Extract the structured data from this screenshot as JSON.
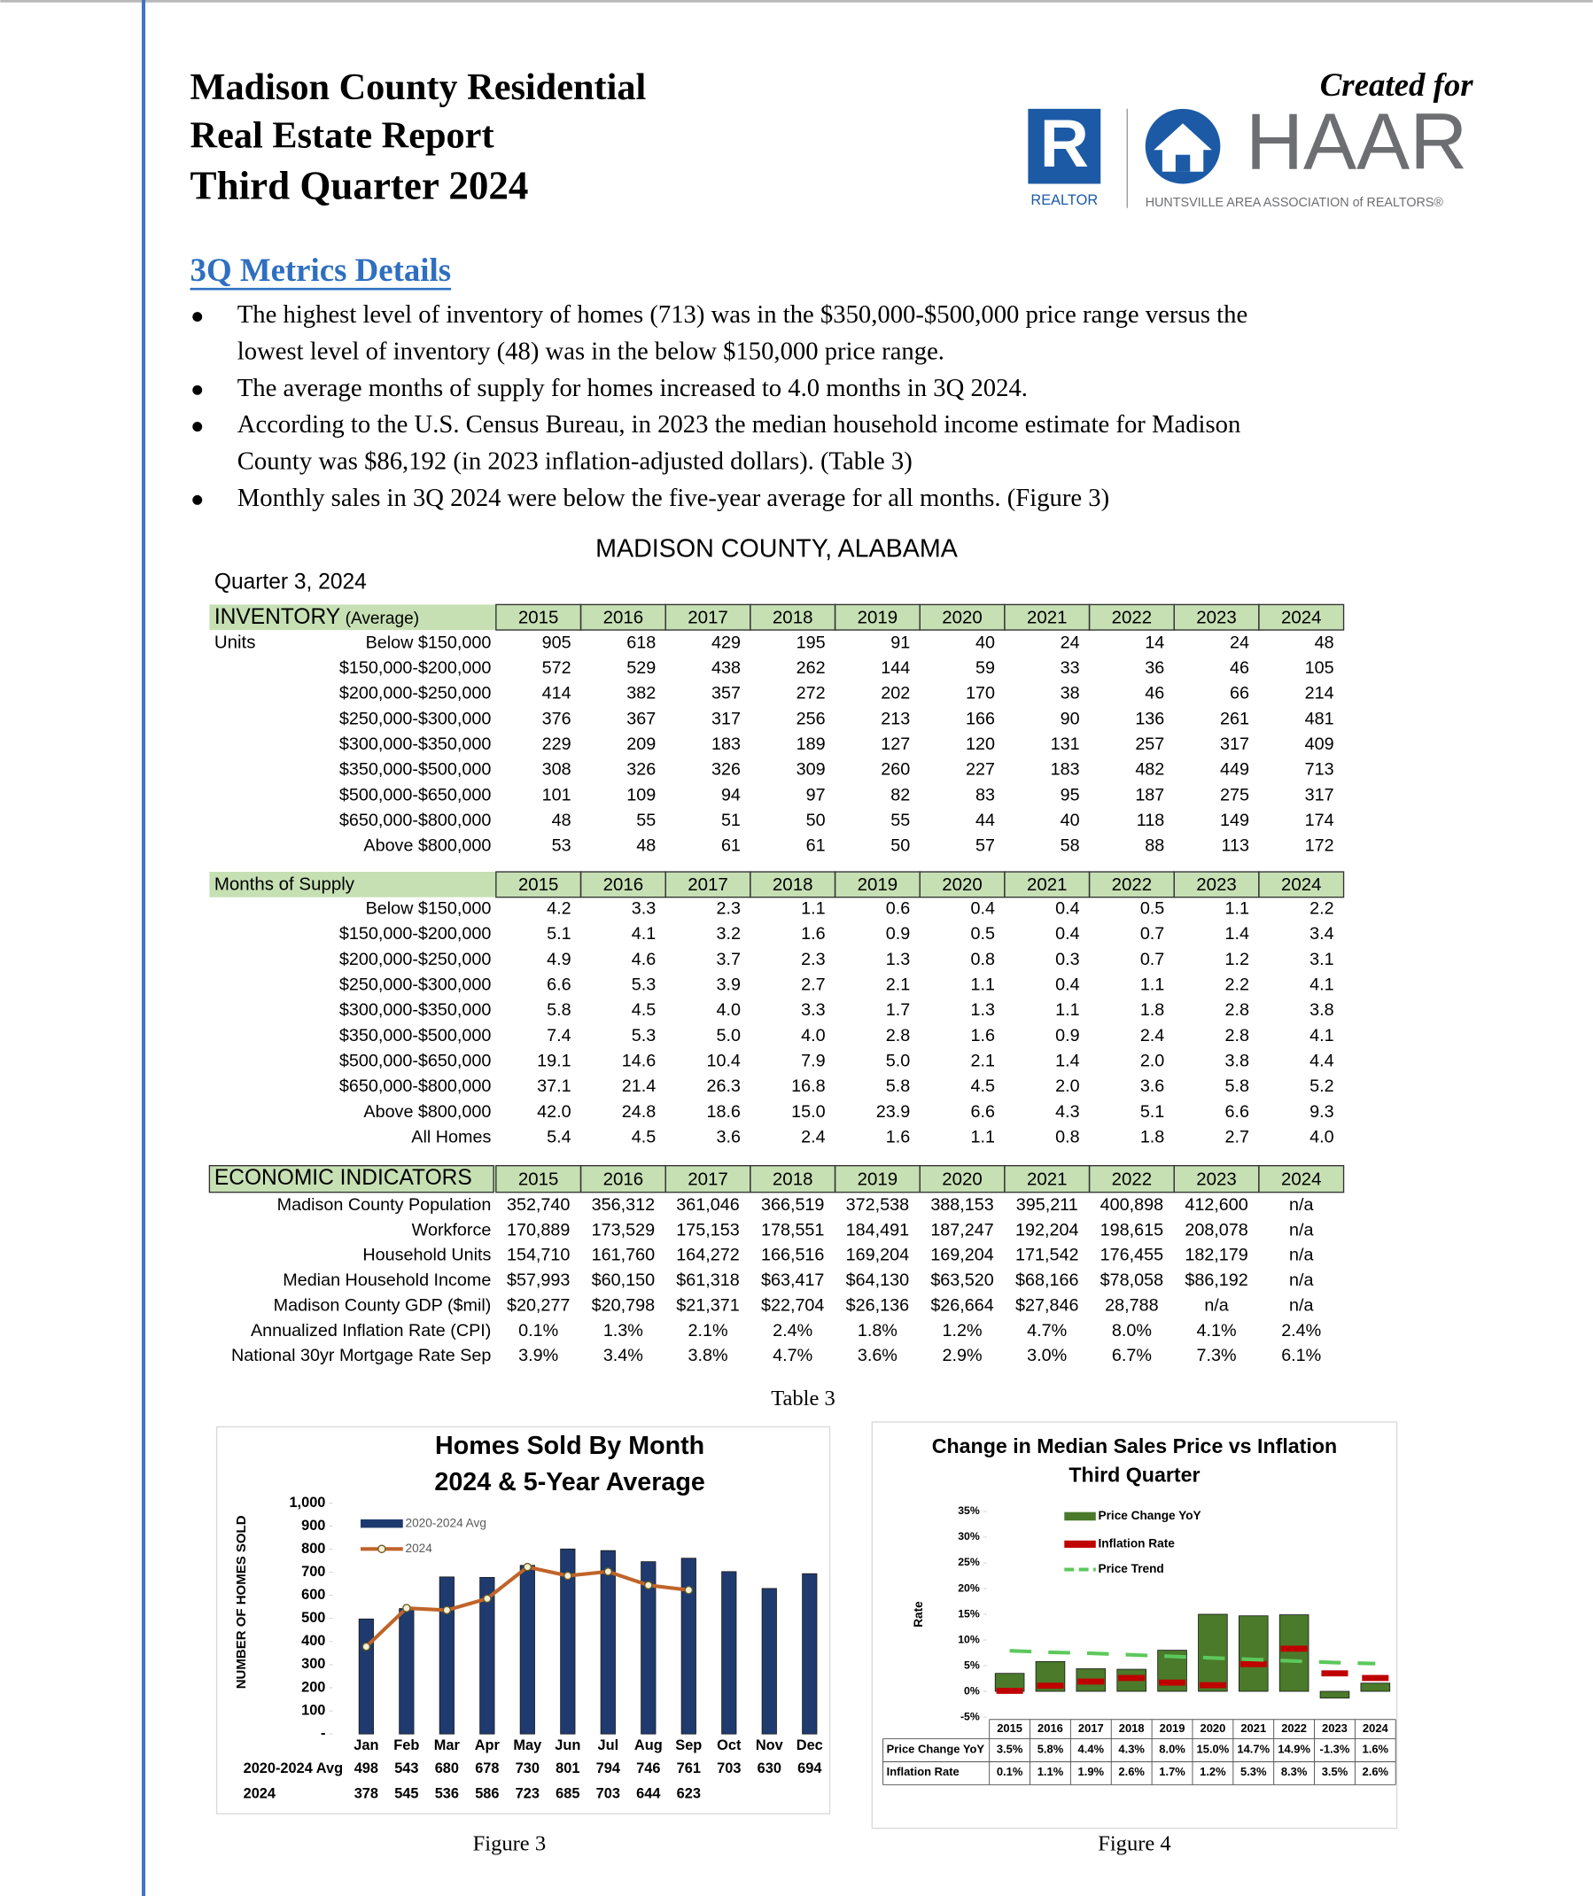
{
  "header": {
    "title": [
      "Madison County Residential",
      "Real Estate Report",
      "Third Quarter 2024"
    ],
    "created_for": "Created for",
    "logo": {
      "r_mark": "R",
      "realtor": "REALTOR",
      "name": "HAAR",
      "subtitle": "HUNTSVILLE AREA ASSOCIATION of REALTORS®"
    }
  },
  "metrics": {
    "heading": "3Q Metrics Details",
    "bullets": [
      [
        "The highest level of inventory of homes (713) was in the $350,000-$500,000 price range versus the",
        "lowest level of inventory (48) was in the below $150,000 price range."
      ],
      [
        "The average months of supply for homes increased to 4.0 months in 3Q 2024."
      ],
      [
        "According to the U.S. Census Bureau, in 2023 the median household income estimate for Madison",
        "County was $86,192 (in 2023 inflation-adjusted dollars). (Table 3)"
      ],
      [
        "Monthly sales in 3Q 2024 were below the five-year average for all months. (Figure 3)"
      ]
    ]
  },
  "table": {
    "title": "MADISON COUNTY, ALABAMA",
    "period": "Quarter 3, 2024",
    "years": [
      2015,
      2016,
      2017,
      2018,
      2019,
      2020,
      2021,
      2022,
      2023,
      2024
    ],
    "inventory": {
      "heading": "INVENTORY",
      "heading_note": "(Average)",
      "unit": "Units",
      "rows": [
        {
          "label": "Below $150,000",
          "values": [
            905,
            618,
            429,
            195,
            91,
            40,
            24,
            14,
            24,
            48
          ]
        },
        {
          "label": "$150,000-$200,000",
          "values": [
            572,
            529,
            438,
            262,
            144,
            59,
            33,
            36,
            46,
            105
          ]
        },
        {
          "label": "$200,000-$250,000",
          "values": [
            414,
            382,
            357,
            272,
            202,
            170,
            38,
            46,
            66,
            214
          ]
        },
        {
          "label": "$250,000-$300,000",
          "values": [
            376,
            367,
            317,
            256,
            213,
            166,
            90,
            136,
            261,
            481
          ]
        },
        {
          "label": "$300,000-$350,000",
          "values": [
            229,
            209,
            183,
            189,
            127,
            120,
            131,
            257,
            317,
            409
          ]
        },
        {
          "label": "$350,000-$500,000",
          "values": [
            308,
            326,
            326,
            309,
            260,
            227,
            183,
            482,
            449,
            713
          ]
        },
        {
          "label": "$500,000-$650,000",
          "values": [
            101,
            109,
            94,
            97,
            82,
            83,
            95,
            187,
            275,
            317
          ]
        },
        {
          "label": "$650,000-$800,000",
          "values": [
            48,
            55,
            51,
            50,
            55,
            44,
            40,
            118,
            149,
            174
          ]
        },
        {
          "label": "Above $800,000",
          "values": [
            53,
            48,
            61,
            61,
            50,
            57,
            58,
            88,
            113,
            172
          ]
        }
      ]
    },
    "supply": {
      "heading": "Months of Supply",
      "rows": [
        {
          "label": "Below $150,000",
          "values": [
            "4.2",
            "3.3",
            "2.3",
            "1.1",
            "0.6",
            "0.4",
            "0.4",
            "0.5",
            "1.1",
            "2.2"
          ]
        },
        {
          "label": "$150,000-$200,000",
          "values": [
            "5.1",
            "4.1",
            "3.2",
            "1.6",
            "0.9",
            "0.5",
            "0.4",
            "0.7",
            "1.4",
            "3.4"
          ]
        },
        {
          "label": "$200,000-$250,000",
          "values": [
            "4.9",
            "4.6",
            "3.7",
            "2.3",
            "1.3",
            "0.8",
            "0.3",
            "0.7",
            "1.2",
            "3.1"
          ]
        },
        {
          "label": "$250,000-$300,000",
          "values": [
            "6.6",
            "5.3",
            "3.9",
            "2.7",
            "2.1",
            "1.1",
            "0.4",
            "1.1",
            "2.2",
            "4.1"
          ]
        },
        {
          "label": "$300,000-$350,000",
          "values": [
            "5.8",
            "4.5",
            "4.0",
            "3.3",
            "1.7",
            "1.3",
            "1.1",
            "1.8",
            "2.8",
            "3.8"
          ]
        },
        {
          "label": "$350,000-$500,000",
          "values": [
            "7.4",
            "5.3",
            "5.0",
            "4.0",
            "2.8",
            "1.6",
            "0.9",
            "2.4",
            "2.8",
            "4.1"
          ]
        },
        {
          "label": "$500,000-$650,000",
          "values": [
            "19.1",
            "14.6",
            "10.4",
            "7.9",
            "5.0",
            "2.1",
            "1.4",
            "2.0",
            "3.8",
            "4.4"
          ]
        },
        {
          "label": "$650,000-$800,000",
          "values": [
            "37.1",
            "21.4",
            "26.3",
            "16.8",
            "5.8",
            "4.5",
            "2.0",
            "3.6",
            "5.8",
            "5.2"
          ]
        },
        {
          "label": "Above $800,000",
          "values": [
            "42.0",
            "24.8",
            "18.6",
            "15.0",
            "23.9",
            "6.6",
            "4.3",
            "5.1",
            "6.6",
            "9.3"
          ]
        },
        {
          "label": "All Homes",
          "values": [
            "5.4",
            "4.5",
            "3.6",
            "2.4",
            "1.6",
            "1.1",
            "0.8",
            "1.8",
            "2.7",
            "4.0"
          ]
        }
      ]
    },
    "economic": {
      "heading": "ECONOMIC INDICATORS",
      "rows": [
        {
          "label": "Madison County Population",
          "values": [
            "352,740",
            "356,312",
            "361,046",
            "366,519",
            "372,538",
            "388,153",
            "395,211",
            "400,898",
            "412,600",
            "n/a"
          ]
        },
        {
          "label": "Workforce",
          "values": [
            "170,889",
            "173,529",
            "175,153",
            "178,551",
            "184,491",
            "187,247",
            "192,204",
            "198,615",
            "208,078",
            "n/a"
          ]
        },
        {
          "label": "Household Units",
          "values": [
            "154,710",
            "161,760",
            "164,272",
            "166,516",
            "169,204",
            "169,204",
            "171,542",
            "176,455",
            "182,179",
            "n/a"
          ]
        },
        {
          "label": "Median Household Income",
          "values": [
            "$57,993",
            "$60,150",
            "$61,318",
            "$63,417",
            "$64,130",
            "$63,520",
            "$68,166",
            "$78,058",
            "$86,192",
            "n/a"
          ]
        },
        {
          "label": "Madison County GDP ($mil)",
          "values": [
            "$20,277",
            "$20,798",
            "$21,371",
            "$22,704",
            "$26,136",
            "$26,664",
            "$27,846",
            "28,788",
            "n/a",
            "n/a"
          ]
        },
        {
          "label": "Annualized Inflation Rate (CPI)",
          "values": [
            "0.1%",
            "1.3%",
            "2.1%",
            "2.4%",
            "1.8%",
            "1.2%",
            "4.7%",
            "8.0%",
            "4.1%",
            "2.4%"
          ]
        },
        {
          "label": "National 30yr Mortgage Rate Sep",
          "values": [
            "3.9%",
            "3.4%",
            "3.8%",
            "4.7%",
            "3.6%",
            "2.9%",
            "3.0%",
            "6.7%",
            "7.3%",
            "6.1%"
          ]
        }
      ]
    },
    "caption": "Table 3"
  },
  "chart_data": [
    {
      "type": "bar",
      "title": [
        "Homes Sold By Month",
        "2024 & 5-Year Average"
      ],
      "y_label": "NUMBER OF HOMES SOLD",
      "categories": [
        "Jan",
        "Feb",
        "Mar",
        "Apr",
        "May",
        "Jun",
        "Jul",
        "Aug",
        "Sep",
        "Oct",
        "Nov",
        "Dec"
      ],
      "series": [
        {
          "name": "2020-2024 Avg",
          "type": "bar",
          "color": "#1f3a6e",
          "values": [
            498,
            543,
            680,
            678,
            730,
            801,
            794,
            746,
            761,
            703,
            630,
            694
          ]
        },
        {
          "name": "2024",
          "type": "line",
          "color": "#c0642a",
          "markers": true,
          "values": [
            378,
            545,
            536,
            586,
            723,
            685,
            703,
            644,
            623,
            null,
            null,
            null
          ]
        }
      ],
      "ylim": [
        0,
        1000
      ],
      "yticks": [
        {
          "value": 0,
          "label": "-"
        },
        100,
        200,
        300,
        400,
        500,
        600,
        700,
        800,
        900,
        {
          "value": 1000,
          "label": "1,000"
        }
      ],
      "legend": "upper left",
      "data_table": true,
      "caption": "Figure 3"
    },
    {
      "type": "bar",
      "title": [
        "Change in Median Sales Price vs Inflation",
        "Third Quarter"
      ],
      "y_label": "Rate",
      "categories": [
        2015,
        2016,
        2017,
        2018,
        2019,
        2020,
        2021,
        2022,
        2023,
        2024
      ],
      "series": [
        {
          "name": "Price Change YoY",
          "type": "bar",
          "color": "#4a7a2a",
          "values": [
            3.5,
            5.8,
            4.4,
            4.3,
            8.0,
            15.0,
            14.7,
            14.9,
            -1.3,
            1.6
          ],
          "value_labels": [
            "3.5%",
            "5.8%",
            "4.4%",
            "4.3%",
            "8.0%",
            "15.0%",
            "14.7%",
            "14.9%",
            "-1.3%",
            "1.6%"
          ]
        },
        {
          "name": "Inflation Rate",
          "type": "marker",
          "color": "#c00000",
          "values": [
            0.1,
            1.1,
            1.9,
            2.6,
            1.7,
            1.2,
            5.3,
            8.3,
            3.5,
            2.6
          ],
          "value_labels": [
            "0.1%",
            "1.1%",
            "1.9%",
            "2.6%",
            "1.7%",
            "1.2%",
            "5.3%",
            "8.3%",
            "3.5%",
            "2.6%"
          ]
        },
        {
          "name": "Price Trend",
          "type": "line",
          "color": "#5cc85c",
          "dash": true,
          "values": [
            7.9,
            7.6,
            7.4,
            7.1,
            6.8,
            6.5,
            6.2,
            5.9,
            5.6,
            5.4
          ]
        }
      ],
      "ylim": [
        -5,
        35
      ],
      "yticks": [
        {
          "value": -5,
          "label": "-5%"
        },
        {
          "value": 0,
          "label": "0%"
        },
        {
          "value": 5,
          "label": "5%"
        },
        {
          "value": 10,
          "label": "10%"
        },
        {
          "value": 15,
          "label": "15%"
        },
        {
          "value": 20,
          "label": "20%"
        },
        {
          "value": 25,
          "label": "25%"
        },
        {
          "value": 30,
          "label": "30%"
        },
        {
          "value": 35,
          "label": "35%"
        }
      ],
      "legend": "upper center",
      "data_table": true,
      "caption": "Figure 4"
    }
  ]
}
